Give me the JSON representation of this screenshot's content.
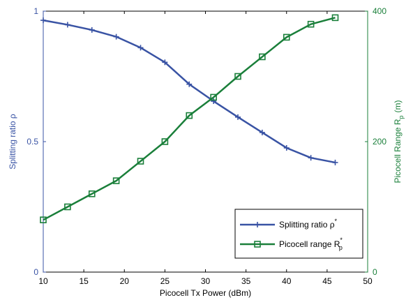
{
  "chart_data": {
    "type": "line",
    "xlabel": "Picocell Tx Power (dBm)",
    "ylabel_left": "Splitting ratio ρ",
    "ylabel_right": {
      "text": "Picocell Range R",
      "sub": "p",
      "unit": "(m)"
    },
    "xlim": [
      10,
      50
    ],
    "ylim_left": [
      0,
      1
    ],
    "ylim_right": [
      0,
      400
    ],
    "x_ticks": [
      10,
      15,
      20,
      25,
      30,
      35,
      40,
      45,
      50
    ],
    "y_ticks_left": [
      0,
      0.5,
      1
    ],
    "y_tick_labels_left": [
      "0",
      "0.5",
      "1"
    ],
    "y_ticks_right": [
      0,
      200,
      400
    ],
    "grid": false,
    "legend_position": "bottom-right",
    "x": [
      10,
      13,
      16,
      19,
      22,
      25,
      28,
      31,
      34,
      37,
      40,
      43,
      46
    ],
    "series": [
      {
        "name": "Splitting ratio ρ",
        "name_sup": "*",
        "axis": "left",
        "marker": "plus",
        "color": "#3953a4",
        "values": [
          0.965,
          0.948,
          0.928,
          0.902,
          0.86,
          0.804,
          0.72,
          0.655,
          0.594,
          0.535,
          0.476,
          0.438,
          0.42
        ]
      },
      {
        "name": "Picocell range R",
        "name_sup": "*",
        "name_sub": "p",
        "axis": "right",
        "marker": "square",
        "color": "#1a7f3a",
        "values": [
          80,
          100,
          120,
          140,
          170,
          200,
          240,
          268,
          300,
          330,
          360,
          380,
          390
        ]
      }
    ]
  }
}
